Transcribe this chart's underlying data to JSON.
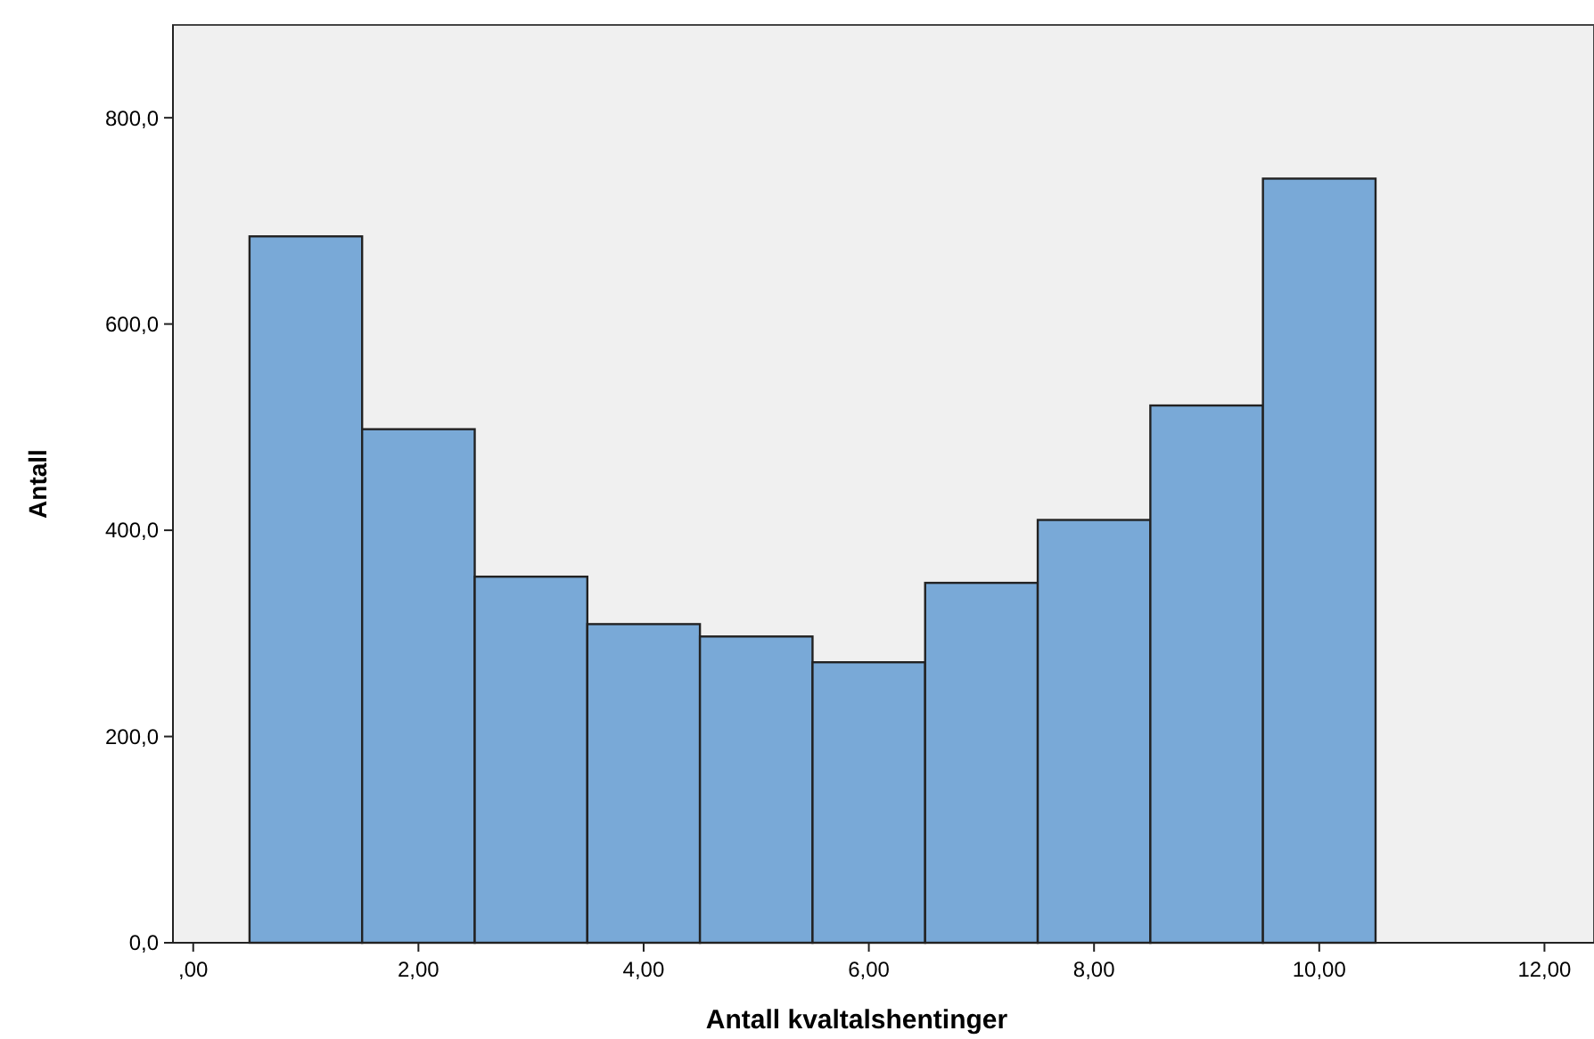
{
  "chart_data": {
    "type": "histogram",
    "xlabel": "Antall kvaltalshentinger",
    "ylabel": "Antall",
    "bins": [
      0.5,
      1.5,
      2.5,
      3.5,
      4.5,
      5.5,
      6.5,
      7.5,
      8.5,
      9.5,
      10.5
    ],
    "values": [
      685,
      498,
      355,
      309,
      297,
      272,
      349,
      410,
      521,
      741
    ],
    "color": "#79a9d7",
    "xlim": [
      -0.18,
      12.44
    ],
    "ylim": [
      0,
      890
    ],
    "xticks": [
      {
        "value": 0,
        "label": ",00"
      },
      {
        "value": 2,
        "label": "2,00"
      },
      {
        "value": 4,
        "label": "4,00"
      },
      {
        "value": 6,
        "label": "6,00"
      },
      {
        "value": 8,
        "label": "8,00"
      },
      {
        "value": 10,
        "label": "10,00"
      },
      {
        "value": 12,
        "label": "12,00"
      }
    ],
    "yticks": [
      {
        "value": 0,
        "label": "0,0"
      },
      {
        "value": 200,
        "label": "200,0"
      },
      {
        "value": 400,
        "label": "400,0"
      },
      {
        "value": 600,
        "label": "600,0"
      },
      {
        "value": 800,
        "label": "800,0"
      }
    ]
  }
}
